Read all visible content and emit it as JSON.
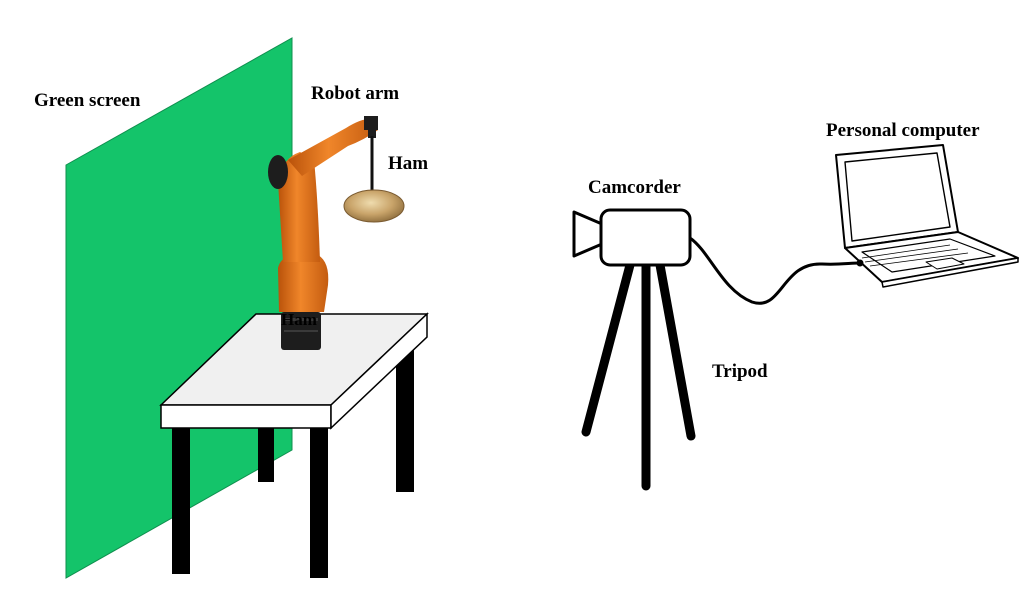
{
  "labels": {
    "green_screen": "Green screen",
    "robot_arm": "Robot arm",
    "ham_top": "Ham",
    "ham_base": "Ham",
    "camcorder": "Camcorder",
    "tripod": "Tripod",
    "personal_computer": "Personal computer"
  },
  "colors": {
    "green_screen": "#14c46a",
    "robot_orange": "#e8741a",
    "robot_dark": "#1d1d1d",
    "ham": "#c9a46a",
    "table_top": "#f0f0f0",
    "outline": "#000000"
  }
}
